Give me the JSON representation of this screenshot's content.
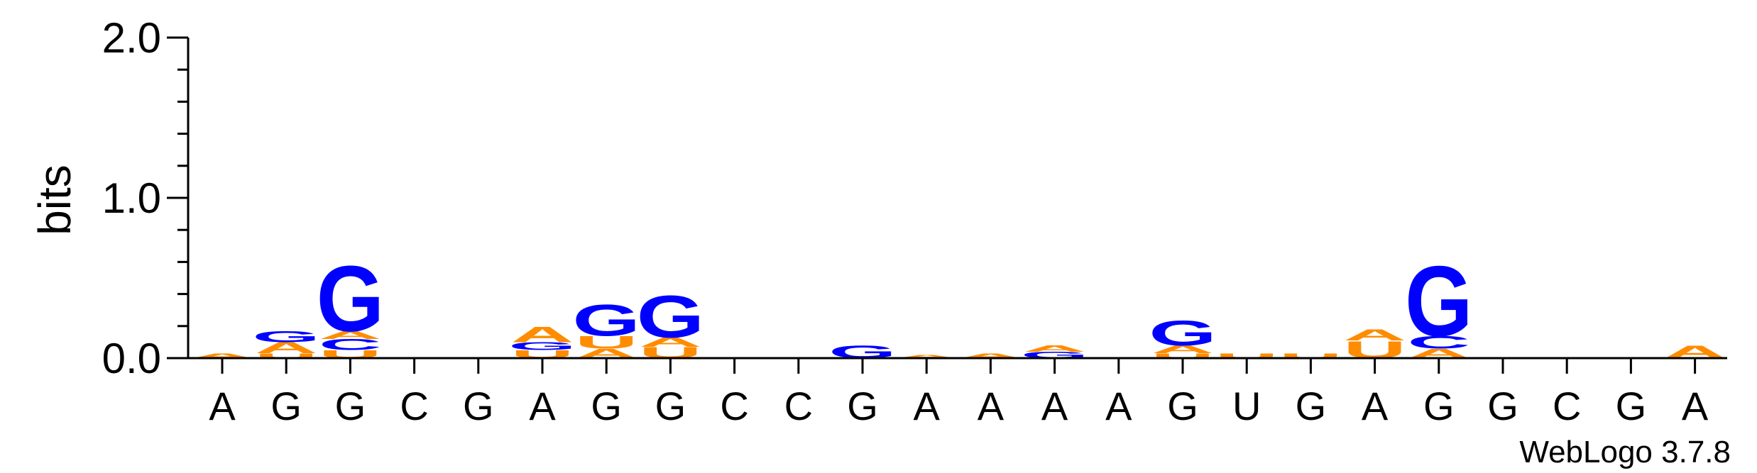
{
  "chart_data": {
    "type": "sequence-logo",
    "ylabel": "bits",
    "ylim": [
      0,
      2.0
    ],
    "yticks": [
      "0.0",
      "1.0",
      "2.0"
    ],
    "colors": {
      "A": "#ff8c00",
      "U": "#ff8c00",
      "G": "#0000ff",
      "C": "#0000ff"
    },
    "positions": [
      {
        "label": "A",
        "stack": [
          {
            "letter": "A",
            "height": 0.03
          }
        ]
      },
      {
        "label": "G",
        "stack": [
          {
            "letter": "U",
            "height": 0.03
          },
          {
            "letter": "A",
            "height": 0.07
          },
          {
            "letter": "G",
            "height": 0.07
          }
        ]
      },
      {
        "label": "G",
        "stack": [
          {
            "letter": "U",
            "height": 0.05
          },
          {
            "letter": "C",
            "height": 0.07
          },
          {
            "letter": "A",
            "height": 0.05
          },
          {
            "letter": "G",
            "height": 0.42
          }
        ]
      },
      {
        "label": "C",
        "stack": []
      },
      {
        "label": "G",
        "stack": []
      },
      {
        "label": "A",
        "stack": [
          {
            "letter": "U",
            "height": 0.05
          },
          {
            "letter": "G",
            "height": 0.05
          },
          {
            "letter": "A",
            "height": 0.1
          }
        ]
      },
      {
        "label": "G",
        "stack": [
          {
            "letter": "A",
            "height": 0.06
          },
          {
            "letter": "U",
            "height": 0.08
          },
          {
            "letter": "G",
            "height": 0.2
          }
        ]
      },
      {
        "label": "G",
        "stack": [
          {
            "letter": "U",
            "height": 0.07
          },
          {
            "letter": "A",
            "height": 0.06
          },
          {
            "letter": "G",
            "height": 0.27
          }
        ]
      },
      {
        "label": "C",
        "stack": []
      },
      {
        "label": "C",
        "stack": []
      },
      {
        "label": "G",
        "stack": [
          {
            "letter": "G",
            "height": 0.08
          }
        ]
      },
      {
        "label": "A",
        "stack": [
          {
            "letter": "A",
            "height": 0.02
          }
        ]
      },
      {
        "label": "A",
        "stack": [
          {
            "letter": "A",
            "height": 0.03
          }
        ]
      },
      {
        "label": "A",
        "stack": [
          {
            "letter": "G",
            "height": 0.04
          },
          {
            "letter": "A",
            "height": 0.04
          }
        ]
      },
      {
        "label": "A",
        "stack": []
      },
      {
        "label": "G",
        "stack": [
          {
            "letter": "U",
            "height": 0.03
          },
          {
            "letter": "A",
            "height": 0.05
          },
          {
            "letter": "G",
            "height": 0.16
          }
        ]
      },
      {
        "label": "U",
        "stack": [
          {
            "letter": "U",
            "height": 0.03
          }
        ]
      },
      {
        "label": "G",
        "stack": [
          {
            "letter": "U",
            "height": 0.03
          }
        ]
      },
      {
        "label": "A",
        "stack": [
          {
            "letter": "U",
            "height": 0.11
          },
          {
            "letter": "A",
            "height": 0.07
          }
        ]
      },
      {
        "label": "G",
        "stack": [
          {
            "letter": "A",
            "height": 0.06
          },
          {
            "letter": "C",
            "height": 0.08
          },
          {
            "letter": "G",
            "height": 0.45
          }
        ]
      },
      {
        "label": "G",
        "stack": []
      },
      {
        "label": "C",
        "stack": []
      },
      {
        "label": "G",
        "stack": []
      },
      {
        "label": "A",
        "stack": [
          {
            "letter": "A",
            "height": 0.08
          }
        ]
      }
    ]
  },
  "watermark": "WebLogo 3.7.8"
}
